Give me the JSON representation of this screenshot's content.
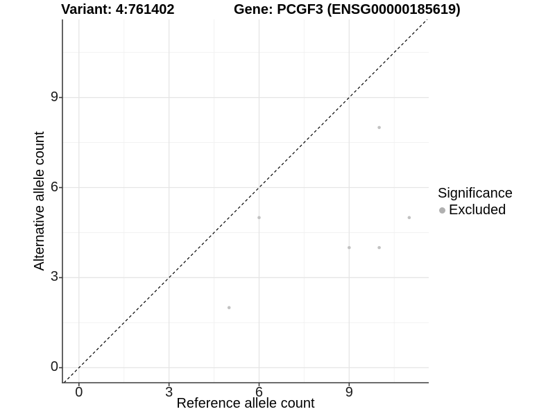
{
  "figure": {
    "title_left": "Variant: 4:761402",
    "title_right": "Gene: PCGF3 (ENSG00000185619)"
  },
  "chart_data": {
    "type": "scatter",
    "title": "Variant: 4:761402 | Gene: PCGF3 (ENSG00000185619)",
    "xlabel": "Reference allele count",
    "ylabel": "Alternative allele count",
    "xlim": [
      -0.55,
      11.65
    ],
    "ylim": [
      -0.5,
      11.6
    ],
    "xticks": [
      0,
      3,
      6,
      9
    ],
    "yticks": [
      0,
      3,
      6,
      9
    ],
    "minor_xticks": [
      1.5,
      4.5,
      7.5,
      10.5
    ],
    "minor_yticks": [
      1.5,
      4.5,
      7.5,
      10.5
    ],
    "grid": true,
    "identity_line": {
      "style": "dashed",
      "slope": 1,
      "intercept": 0,
      "color": "#000000"
    },
    "series": [
      {
        "name": "Excluded",
        "color": "#c2c2c2",
        "points": [
          [
            5,
            2
          ],
          [
            6,
            5
          ],
          [
            9,
            4
          ],
          [
            10,
            4
          ],
          [
            10,
            8
          ],
          [
            11,
            5
          ]
        ]
      }
    ],
    "legend": {
      "title": "Significance",
      "position": "right",
      "entries": [
        {
          "label": "Excluded",
          "color": "#b0b0b0"
        }
      ]
    }
  },
  "colors": {
    "major_grid": "#e5e5e5",
    "minor_grid": "#f2f2f2",
    "axis_line": "#3c3c3c",
    "point": "#c2c2c2",
    "legend_dot": "#b0b0b0"
  }
}
